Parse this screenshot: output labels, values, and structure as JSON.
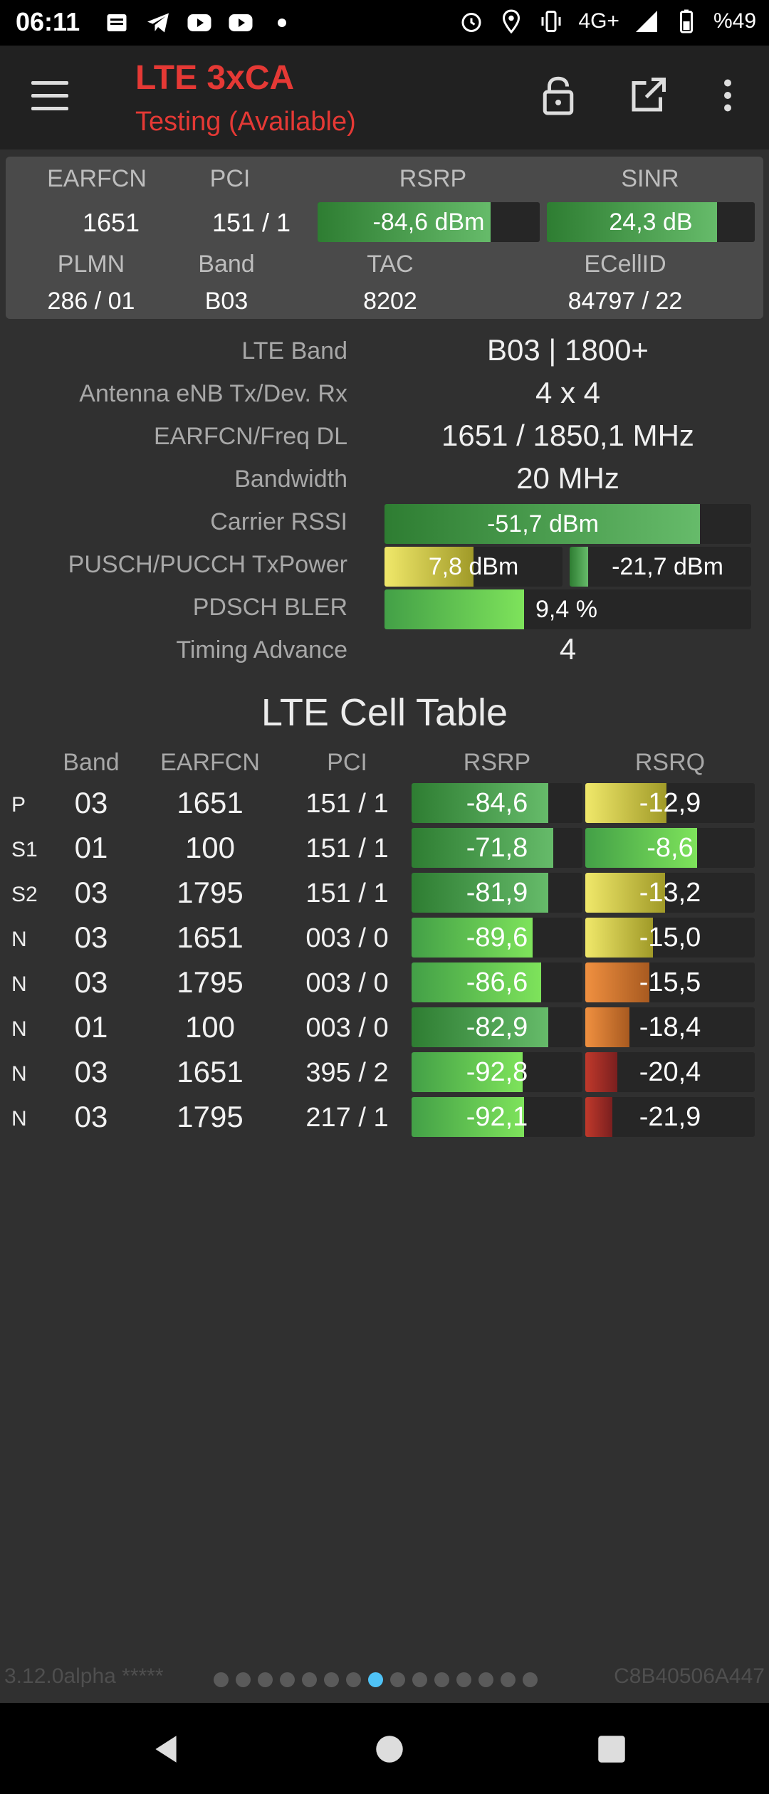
{
  "status_bar": {
    "time": "06:11",
    "network": "4G+",
    "battery": "%49",
    "left_icons": [
      "message-icon",
      "telegram-icon",
      "youtube-icon",
      "youtube-icon",
      "dot-icon"
    ],
    "right_icons": [
      "alarm-icon",
      "location-icon",
      "vibrate-icon",
      "signal-icon",
      "battery-icon"
    ]
  },
  "app_bar": {
    "title": "LTE 3xCA",
    "subtitle": "Testing (Available)",
    "icons": [
      "menu-icon",
      "lock-icon",
      "open-external-icon",
      "more-vert-icon"
    ]
  },
  "summary": {
    "headers": {
      "earfcn": "EARFCN",
      "pci": "PCI",
      "rsrp": "RSRP",
      "sinr": "SINR",
      "plmn": "PLMN",
      "band": "Band",
      "tac": "TAC",
      "ecellid": "ECellID"
    },
    "earfcn": "1651",
    "pci": "151 / 1",
    "rsrp": {
      "text": "-84,6 dBm",
      "fill": 0.78
    },
    "sinr": {
      "text": "24,3 dB",
      "fill": 0.82
    },
    "plmn": "286 / 01",
    "band": "B03",
    "tac": "8202",
    "ecellid": "84797 / 22"
  },
  "details": {
    "lte_band": {
      "label": "LTE Band",
      "value": "B03 | 1800+"
    },
    "antenna": {
      "label": "Antenna eNB Tx/Dev. Rx",
      "value": "4 x 4"
    },
    "earfcn_freq": {
      "label": "EARFCN/Freq DL",
      "value": "1651 / 1850,1 MHz"
    },
    "bandwidth": {
      "label": "Bandwidth",
      "value": "20 MHz"
    },
    "carrier_rssi": {
      "label": "Carrier RSSI",
      "value": "-51,7 dBm",
      "fill": 0.86
    },
    "tx_power": {
      "label": "PUSCH/PUCCH TxPower",
      "pusch": "7,8 dBm",
      "pusch_fill": 0.5,
      "pucch": "-21,7 dBm",
      "pucch_fill": 0.1
    },
    "bler": {
      "label": "PDSCH BLER",
      "value": "9,4 %",
      "fill": 0.38
    },
    "timing_advance": {
      "label": "Timing Advance",
      "value": "4"
    }
  },
  "cell_table": {
    "title": "LTE Cell Table",
    "headers": {
      "band": "Band",
      "earfcn": "EARFCN",
      "pci": "PCI",
      "rsrp": "RSRP",
      "rsrq": "RSRQ"
    },
    "rows": [
      {
        "tag": "P",
        "band": "03",
        "earfcn": "1651",
        "pci": "151 / 1",
        "rsrp": "-84,6",
        "rsrp_fill": 0.8,
        "rsrp_color": "green",
        "rsrq": "-12,9",
        "rsrq_fill": 0.48,
        "rsrq_color": "yellow"
      },
      {
        "tag": "S1",
        "band": "01",
        "earfcn": "100",
        "pci": "151 / 1",
        "rsrp": "-71,8",
        "rsrp_fill": 0.83,
        "rsrp_color": "green",
        "rsrq": "-8,6",
        "rsrq_fill": 0.66,
        "rsrq_color": "bright"
      },
      {
        "tag": "S2",
        "band": "03",
        "earfcn": "1795",
        "pci": "151 / 1",
        "rsrp": "-81,9",
        "rsrp_fill": 0.8,
        "rsrp_color": "green",
        "rsrq": "-13,2",
        "rsrq_fill": 0.47,
        "rsrq_color": "yellow"
      },
      {
        "tag": "N",
        "band": "03",
        "earfcn": "1651",
        "pci": "003 / 0",
        "rsrp": "-89,6",
        "rsrp_fill": 0.71,
        "rsrp_color": "bright",
        "rsrq": "-15,0",
        "rsrq_fill": 0.4,
        "rsrq_color": "yellow"
      },
      {
        "tag": "N",
        "band": "03",
        "earfcn": "1795",
        "pci": "003 / 0",
        "rsrp": "-86,6",
        "rsrp_fill": 0.76,
        "rsrp_color": "bright",
        "rsrq": "-15,5",
        "rsrq_fill": 0.38,
        "rsrq_color": "orange"
      },
      {
        "tag": "N",
        "band": "01",
        "earfcn": "100",
        "pci": "003 / 0",
        "rsrp": "-82,9",
        "rsrp_fill": 0.8,
        "rsrp_color": "green",
        "rsrq": "-18,4",
        "rsrq_fill": 0.26,
        "rsrq_color": "orange"
      },
      {
        "tag": "N",
        "band": "03",
        "earfcn": "1651",
        "pci": "395 / 2",
        "rsrp": "-92,8",
        "rsrp_fill": 0.65,
        "rsrp_color": "bright",
        "rsrq": "-20,4",
        "rsrq_fill": 0.19,
        "rsrq_color": "red"
      },
      {
        "tag": "N",
        "band": "03",
        "earfcn": "1795",
        "pci": "217 / 1",
        "rsrp": "-92,1",
        "rsrp_fill": 0.66,
        "rsrp_color": "bright",
        "rsrq": "-21,9",
        "rsrq_fill": 0.16,
        "rsrq_color": "red"
      }
    ]
  },
  "footer": {
    "version": "3.12.0alpha *****",
    "device_id": "C8B40506A447",
    "page_count": 15,
    "active_page": 7
  },
  "nav_bar": {
    "icons": [
      "back-icon",
      "home-icon",
      "recents-icon"
    ]
  },
  "colors": {
    "accent_red": "#e53935",
    "background": "#303030",
    "app_bar": "#212121",
    "active_dot": "#4fc3f7"
  }
}
